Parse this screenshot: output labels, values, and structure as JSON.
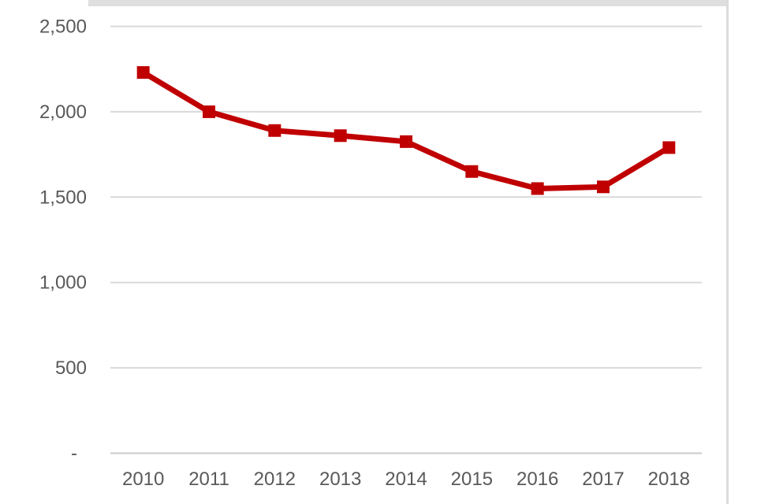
{
  "chart_data": {
    "type": "line",
    "title": "",
    "xlabel": "",
    "ylabel": "",
    "categories": [
      "2010",
      "2011",
      "2012",
      "2013",
      "2014",
      "2015",
      "2016",
      "2017",
      "2018"
    ],
    "values": [
      2230,
      2000,
      1890,
      1860,
      1825,
      1650,
      1550,
      1560,
      1790
    ],
    "ylim": [
      0,
      2500
    ],
    "y_tick_interval": 500,
    "y_ticks": [
      {
        "value": 0,
        "label": "-"
      },
      {
        "value": 500,
        "label": "500"
      },
      {
        "value": 1000,
        "label": "1,000"
      },
      {
        "value": 1500,
        "label": "1,500"
      },
      {
        "value": 2000,
        "label": "2,000"
      },
      {
        "value": 2500,
        "label": "2,500"
      }
    ],
    "grid": true,
    "legend": "none",
    "marker": "square",
    "line_color": "#c00000"
  },
  "style": {
    "grid_color": "#d9d9d9",
    "axis_line_color": "#cbcbcb",
    "tick_text_color": "#595959",
    "background_color": "#ffffff",
    "top_bar_color": "#dfdfdf",
    "page_border_color": "#dcdcdc"
  }
}
